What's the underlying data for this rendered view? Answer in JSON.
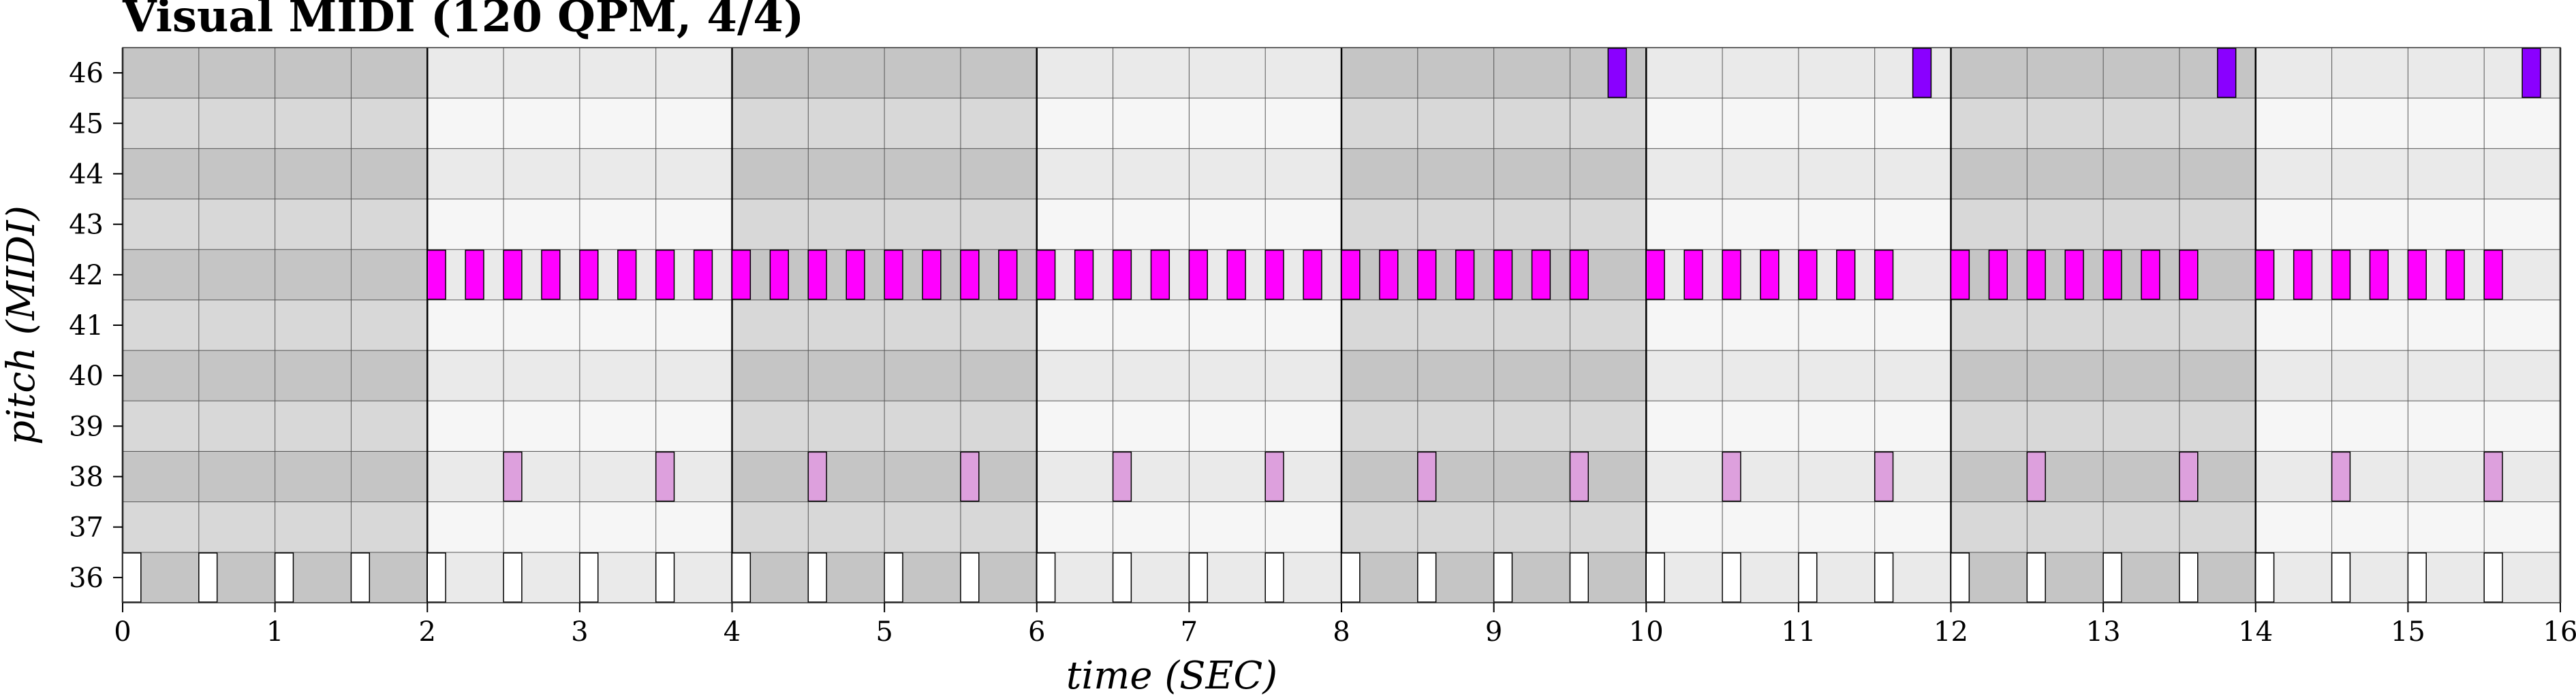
{
  "chart_data": {
    "type": "piano-roll",
    "title": "Visual MIDI (120 QPM, 4/4)",
    "xlabel": "time (SEC)",
    "ylabel": "pitch (MIDI)",
    "xlim": [
      0,
      16
    ],
    "x_ticks": [
      0,
      1,
      2,
      3,
      4,
      5,
      6,
      7,
      8,
      9,
      10,
      11,
      12,
      13,
      14,
      15,
      16
    ],
    "pitch_range": [
      36,
      46
    ],
    "y_ticks": [
      36,
      37,
      38,
      39,
      40,
      41,
      42,
      43,
      44,
      45,
      46
    ],
    "beat_seconds": 0.5,
    "beats_per_bar": 4,
    "colors": {
      "row_shade_a": "#d9d9d9",
      "row_shade_b": "#eeeeee",
      "bar_tint_odd": "#c0c0c0",
      "grid": "#555555",
      "bar_line": "#000000",
      "kick": "#ffffff",
      "snare": "#dda0dd",
      "hihat": "#ff00ff",
      "crash": "#8a00ff"
    },
    "notes": {
      "kick": {
        "pitch": 36,
        "duration": 0.12,
        "starts": [
          0,
          0.5,
          1,
          1.5,
          2,
          2.5,
          3,
          3.5,
          4,
          4.5,
          5,
          5.5,
          6,
          6.5,
          7,
          7.5,
          8,
          8.5,
          9,
          9.5,
          10,
          10.5,
          11,
          11.5,
          12,
          12.5,
          13,
          13.5,
          14,
          14.5,
          15,
          15.5
        ]
      },
      "snare": {
        "pitch": 38,
        "duration": 0.12,
        "starts": [
          2.5,
          3.5,
          4.5,
          5.5,
          6.5,
          7.5,
          8.5,
          9.5,
          10.5,
          11.5,
          12.5,
          13.5,
          14.5,
          15.5
        ]
      },
      "hihat": {
        "pitch": 42,
        "duration": 0.12,
        "starts": [
          2,
          2.25,
          2.5,
          2.75,
          3,
          3.25,
          3.5,
          3.75,
          4,
          4.25,
          4.5,
          4.75,
          5,
          5.25,
          5.5,
          5.75,
          6,
          6.25,
          6.5,
          6.75,
          7,
          7.25,
          7.5,
          7.75,
          8,
          8.25,
          8.5,
          8.75,
          9,
          9.25,
          9.5,
          10,
          10.25,
          10.5,
          10.75,
          11,
          11.25,
          11.5,
          12,
          12.25,
          12.5,
          12.75,
          13,
          13.25,
          13.5,
          14,
          14.25,
          14.5,
          14.75,
          15,
          15.25,
          15.5
        ]
      },
      "crash": {
        "pitch": 46,
        "duration": 0.12,
        "starts": [
          9.75,
          11.75,
          13.75,
          15.75
        ]
      }
    }
  }
}
